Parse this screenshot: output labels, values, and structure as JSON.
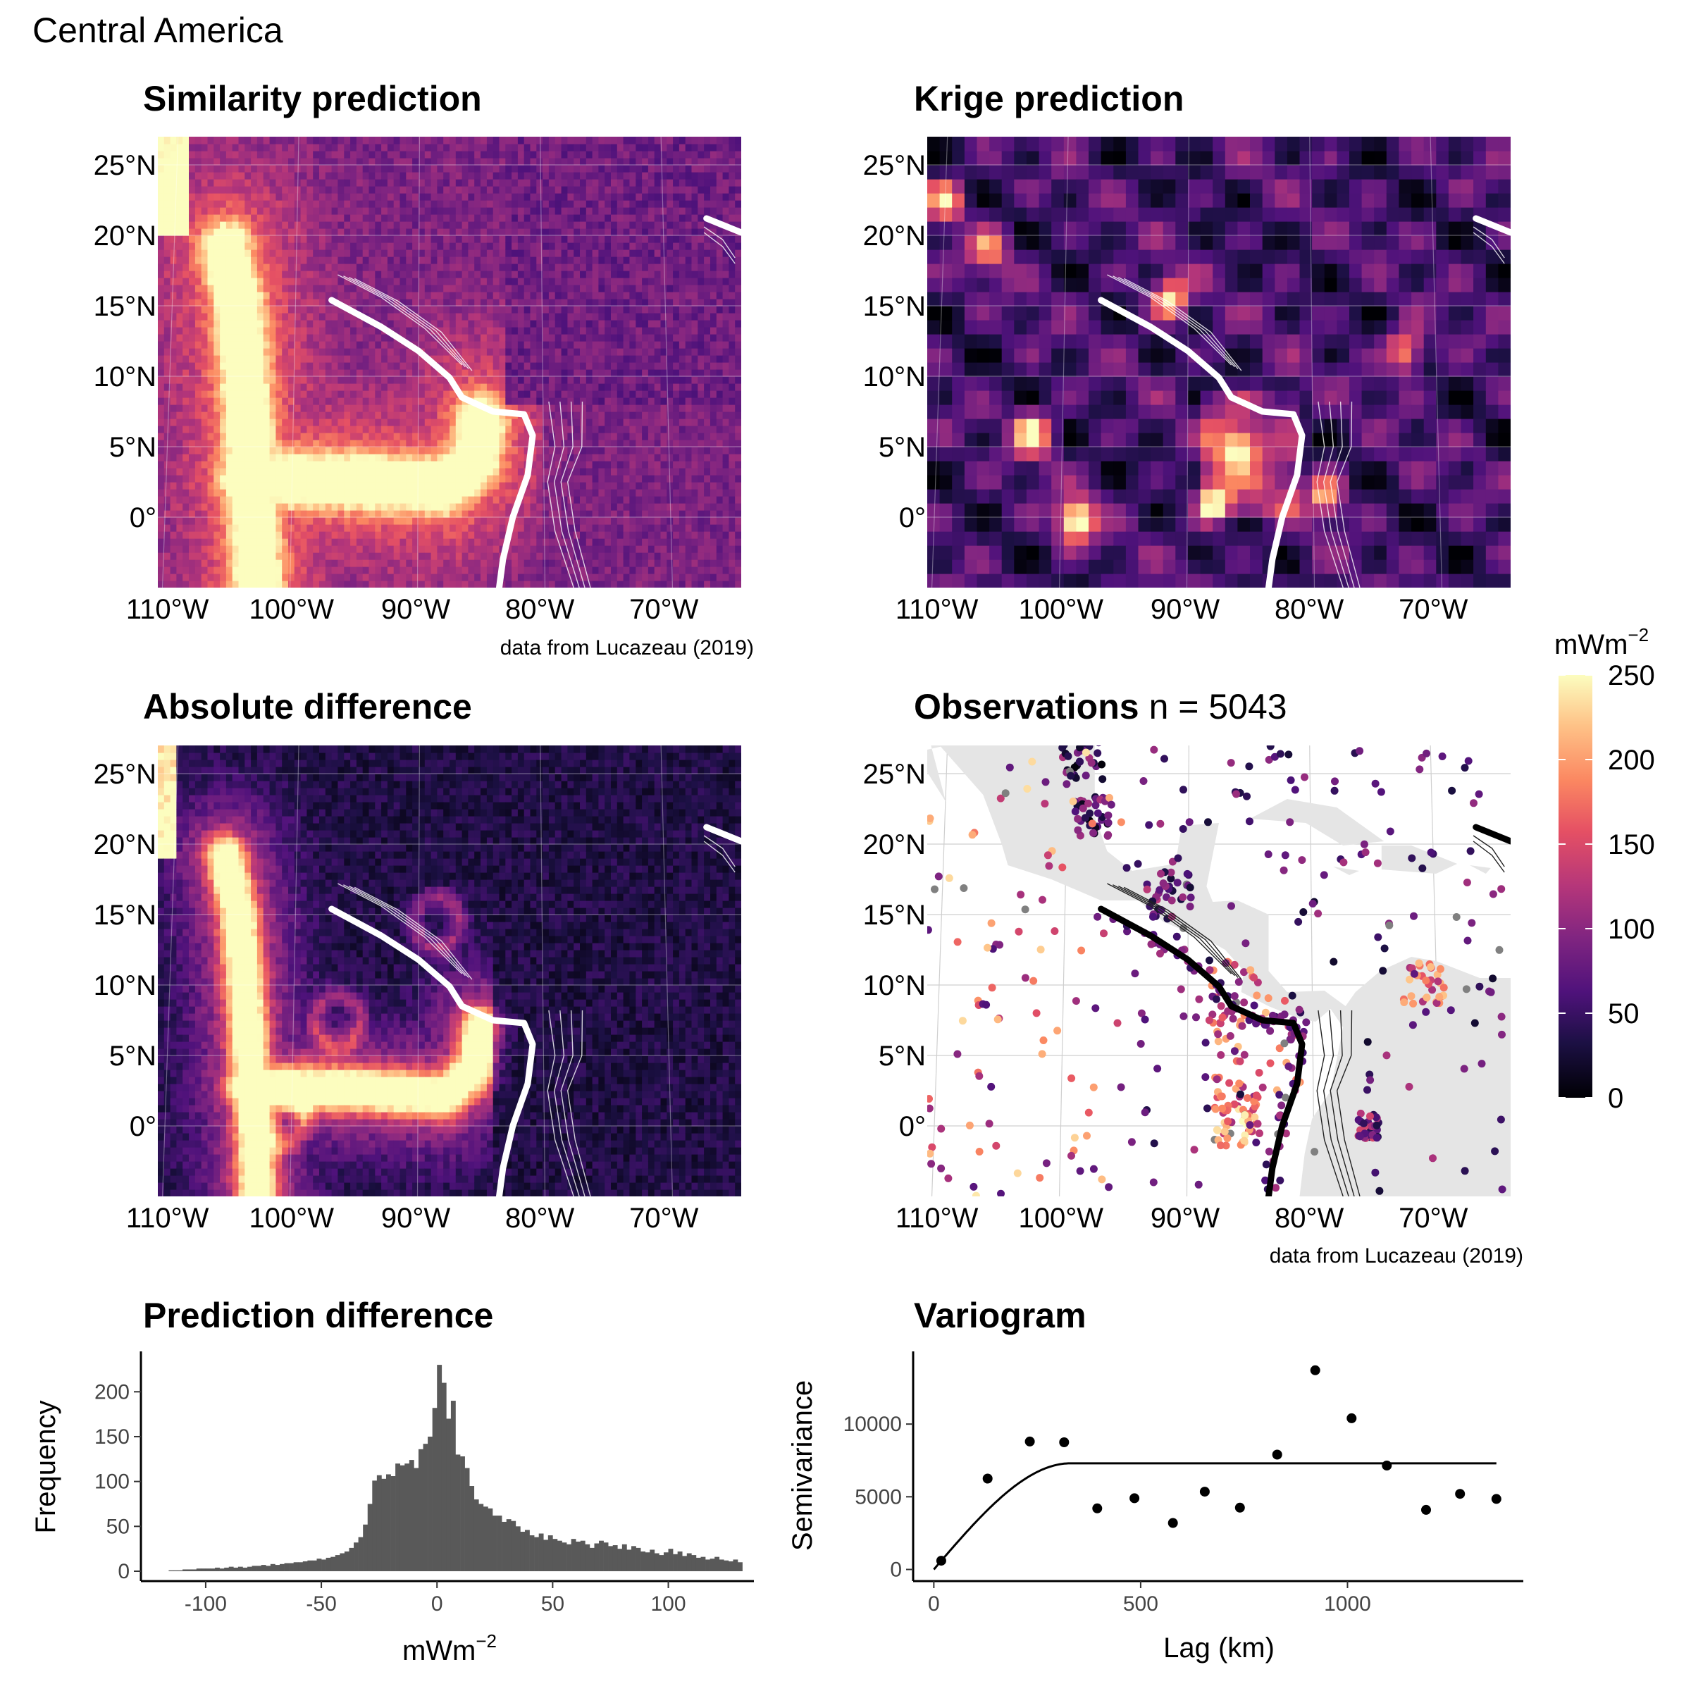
{
  "figure": {
    "supertitle": "Central America",
    "caption": "data from Lucazeau (2019)"
  },
  "map_ticks": {
    "lat_labels": [
      "25°N",
      "20°N",
      "15°N",
      "10°N",
      "5°N",
      "0°"
    ],
    "lat_values": [
      25,
      20,
      15,
      10,
      5,
      0
    ],
    "lon_labels": [
      "110°W",
      "100°W",
      "90°W",
      "80°W",
      "70°W"
    ],
    "lon_values": [
      -110,
      -100,
      -90,
      -80,
      -70
    ],
    "lat_range": [
      -5,
      27
    ],
    "lon_range": [
      -111,
      -64
    ]
  },
  "panels": {
    "similarity": {
      "title": "Similarity prediction"
    },
    "krige": {
      "title": "Krige prediction"
    },
    "absdiff": {
      "title": "Absolute difference"
    },
    "observations": {
      "title": "Observations",
      "count_label": "n = 5043"
    }
  },
  "colors": {
    "palette": "magma",
    "land": "#e5e5e5",
    "grid": "#cfcfcf",
    "na_point": "#808080",
    "bar": "#595959"
  },
  "legend": {
    "title": "mWm",
    "title_superscript": "−2",
    "ticks": [
      "250",
      "200",
      "150",
      "100",
      "50",
      "0"
    ],
    "range": [
      0,
      250
    ]
  },
  "chart_data": [
    {
      "type": "bar",
      "title": "Prediction difference",
      "xlabel": "mWm",
      "xlabel_superscript": "−2",
      "ylabel": "Frequency",
      "x_ticks": [
        "-100",
        "-50",
        "0",
        "50",
        "100"
      ],
      "x_tick_values": [
        -100,
        -50,
        0,
        50,
        100
      ],
      "y_ticks": [
        "0",
        "50",
        "100",
        "150",
        "200"
      ],
      "y_tick_values": [
        0,
        50,
        100,
        150,
        200
      ],
      "xlim": [
        -128,
        137
      ],
      "ylim": [
        0,
        245
      ],
      "bin_width": 2,
      "bin_centers": [
        -115,
        -113,
        -111,
        -109,
        -107,
        -105,
        -103,
        -101,
        -99,
        -97,
        -95,
        -93,
        -91,
        -89,
        -87,
        -85,
        -83,
        -81,
        -79,
        -77,
        -75,
        -73,
        -71,
        -69,
        -67,
        -65,
        -63,
        -61,
        -59,
        -57,
        -55,
        -53,
        -51,
        -49,
        -47,
        -45,
        -43,
        -41,
        -39,
        -37,
        -35,
        -33,
        -31,
        -29,
        -27,
        -25,
        -23,
        -21,
        -19,
        -17,
        -15,
        -13,
        -11,
        -9,
        -7,
        -5,
        -3,
        -1,
        1,
        3,
        5,
        7,
        9,
        11,
        13,
        15,
        17,
        19,
        21,
        23,
        25,
        27,
        29,
        31,
        33,
        35,
        37,
        39,
        41,
        43,
        45,
        47,
        49,
        51,
        53,
        55,
        57,
        59,
        61,
        63,
        65,
        67,
        69,
        71,
        73,
        75,
        77,
        79,
        81,
        83,
        85,
        87,
        89,
        91,
        93,
        95,
        97,
        99,
        101,
        103,
        105,
        107,
        109,
        111,
        113,
        115,
        117,
        119,
        121,
        123,
        125,
        127,
        129,
        131
      ],
      "values": [
        1,
        1,
        1,
        2,
        2,
        2,
        3,
        3,
        3,
        3,
        4,
        3,
        4,
        5,
        4,
        5,
        4,
        5,
        6,
        6,
        7,
        6,
        8,
        7,
        8,
        9,
        9,
        10,
        10,
        11,
        12,
        12,
        14,
        13,
        15,
        16,
        18,
        20,
        22,
        26,
        32,
        38,
        52,
        75,
        101,
        107,
        103,
        108,
        106,
        120,
        118,
        120,
        124,
        115,
        136,
        142,
        150,
        182,
        230,
        210,
        170,
        190,
        130,
        128,
        115,
        95,
        80,
        75,
        72,
        70,
        62,
        62,
        55,
        58,
        56,
        50,
        44,
        46,
        40,
        38,
        42,
        35,
        40,
        36,
        34,
        32,
        30,
        36,
        33,
        34,
        30,
        26,
        31,
        34,
        32,
        28,
        29,
        25,
        30,
        24,
        28,
        26,
        22,
        21,
        24,
        20,
        18,
        21,
        25,
        19,
        22,
        17,
        20,
        18,
        15,
        16,
        13,
        14,
        16,
        13,
        12,
        11,
        13,
        10
      ]
    },
    {
      "type": "scatter",
      "title": "Variogram",
      "xlabel": "Lag (km)",
      "ylabel": "Semivariance",
      "x_ticks": [
        "0",
        "500",
        "1000"
      ],
      "x_tick_values": [
        0,
        500,
        1000
      ],
      "y_ticks": [
        "0",
        "5000",
        "10000"
      ],
      "y_tick_values": [
        0,
        5000,
        10000
      ],
      "xlim": [
        -50,
        1425
      ],
      "ylim": [
        -800,
        15000
      ],
      "points": {
        "x": [
          18,
          130,
          232,
          315,
          395,
          485,
          578,
          655,
          740,
          830,
          922,
          1010,
          1095,
          1190,
          1272,
          1360
        ],
        "y": [
          600,
          6250,
          8800,
          8750,
          4200,
          4900,
          3200,
          5350,
          4250,
          7900,
          13700,
          10400,
          7150,
          4100,
          5200,
          4850
        ]
      },
      "model": {
        "type": "spherical",
        "nugget": 0,
        "sill": 7300,
        "range_km": 330,
        "x_max": 1360
      }
    }
  ]
}
